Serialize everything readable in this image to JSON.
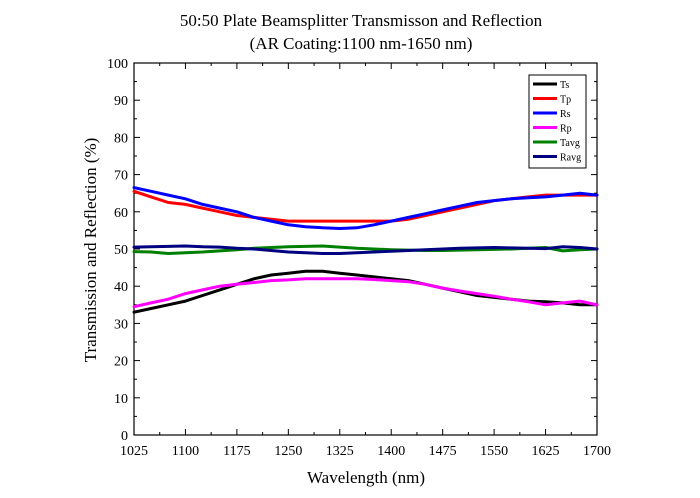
{
  "chart_data": {
    "type": "line",
    "title": "50:50 Plate Beamsplitter Transmisson and Reflection",
    "subtitle": "(AR Coating:1100 nm-1650 nm)",
    "xlabel": "Wavelength (nm)",
    "ylabel": "Transmission and Reflection (%)",
    "xlim": [
      1025,
      1700
    ],
    "ylim": [
      0,
      100
    ],
    "xticks": [
      1025,
      1100,
      1175,
      1250,
      1325,
      1400,
      1475,
      1550,
      1625,
      1700
    ],
    "yticks": [
      0,
      10,
      20,
      30,
      40,
      50,
      60,
      70,
      80,
      90,
      100
    ],
    "grid": false,
    "legend_position": "top-right",
    "x": [
      1025,
      1050,
      1075,
      1100,
      1125,
      1150,
      1175,
      1200,
      1225,
      1250,
      1275,
      1300,
      1325,
      1350,
      1375,
      1400,
      1425,
      1450,
      1475,
      1500,
      1525,
      1550,
      1575,
      1600,
      1625,
      1650,
      1675,
      1700
    ],
    "series": [
      {
        "name": "Ts",
        "color": "#000000",
        "values": [
          33,
          34,
          35,
          36,
          37.5,
          39,
          40.5,
          42,
          43,
          43.5,
          44,
          44,
          43.5,
          43,
          42.5,
          42,
          41.5,
          40.5,
          39.5,
          38.5,
          37.5,
          37,
          36.5,
          36,
          35.8,
          35.5,
          35,
          35
        ]
      },
      {
        "name": "Tp",
        "color": "#ff0000",
        "values": [
          65.5,
          64,
          62.5,
          62,
          61,
          60,
          59,
          58.5,
          58,
          57.5,
          57.5,
          57.5,
          57.5,
          57.5,
          57.5,
          57.5,
          58,
          59,
          60,
          61,
          62,
          63,
          63.5,
          64,
          64.5,
          64.5,
          64.5,
          64.5
        ]
      },
      {
        "name": "Rs",
        "color": "#0000ff",
        "values": [
          66.5,
          65.5,
          64.5,
          63.5,
          62,
          61,
          60,
          58.5,
          57.5,
          56.5,
          56,
          55.7,
          55.5,
          55.7,
          56.5,
          57.5,
          58.5,
          59.5,
          60.5,
          61.5,
          62.5,
          63,
          63.5,
          63.8,
          64,
          64.5,
          65,
          64.5
        ]
      },
      {
        "name": "Rp",
        "color": "#ff00ff",
        "values": [
          34.5,
          35.5,
          36.5,
          38,
          39,
          40,
          40.5,
          41,
          41.5,
          41.7,
          42,
          42,
          42,
          42,
          41.8,
          41.5,
          41.2,
          40.5,
          39.5,
          38.7,
          38,
          37.3,
          36.5,
          35.8,
          35,
          35.5,
          36,
          35
        ]
      },
      {
        "name": "Tavg",
        "color": "#008000",
        "values": [
          49.3,
          49.2,
          48.8,
          49,
          49.2,
          49.5,
          49.8,
          50.2,
          50.4,
          50.6,
          50.7,
          50.8,
          50.5,
          50.2,
          50,
          49.8,
          49.7,
          49.6,
          49.6,
          49.7,
          49.8,
          49.9,
          50,
          50.2,
          50.4,
          49.5,
          49.8,
          50
        ]
      },
      {
        "name": "Ravg",
        "color": "#000080",
        "values": [
          50.5,
          50.6,
          50.7,
          50.8,
          50.6,
          50.5,
          50.2,
          50,
          49.6,
          49.2,
          49,
          48.8,
          48.8,
          49,
          49.2,
          49.4,
          49.6,
          49.8,
          50,
          50.2,
          50.3,
          50.4,
          50.3,
          50.2,
          50.1,
          50.6,
          50.4,
          50
        ]
      }
    ]
  }
}
